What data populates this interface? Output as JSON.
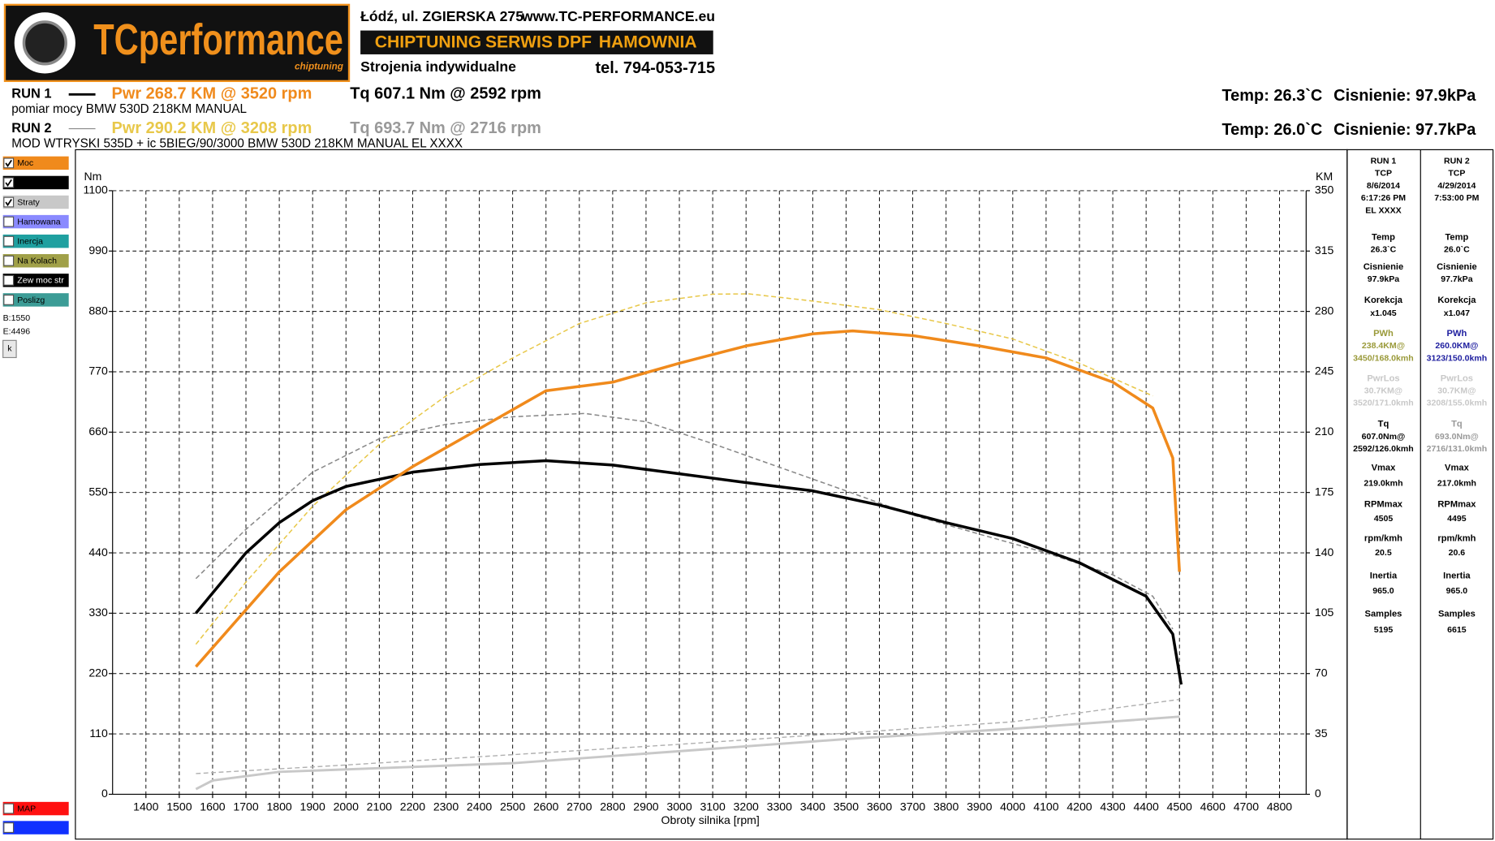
{
  "header": {
    "logo": "TCperformance",
    "logo_sub": "chiptuning",
    "address": "Łódź, ul. ZGIERSKA 275",
    "website": "www.TC-PERFORMANCE.eu",
    "banner": [
      "CHIPTUNING",
      "SERWIS DPF",
      "HAMOWNIA"
    ],
    "tagline": "Strojenia indywidualne",
    "phone": "tel. 794-053-715"
  },
  "runs": [
    {
      "label": "RUN 1",
      "pwr": "Pwr  268.7 KM @ 3520 rpm",
      "tq": "Tq 607.1 Nm @ 2592 rpm",
      "desc": "pomiar mocy BMW 530D 218KM MANUAL",
      "temp": "Temp: 26.3`C",
      "pressure": "Cisnienie: 97.9kPa",
      "line_color": "#000000",
      "pwr_color": "#f08a1c",
      "tq_color": "#000000"
    },
    {
      "label": "RUN 2",
      "pwr": "Pwr  290.2 KM @ 3208 rpm",
      "tq": "Tq 693.7 Nm @ 2716 rpm",
      "desc": "MOD WTRYSKI 535D + ic  5BIEG/90/3000 BMW 530D 218KM MANUAL EL XXXX",
      "temp": "Temp: 26.0`C",
      "pressure": "Cisnienie: 97.7kPa",
      "line_color": "#888888",
      "pwr_color": "#e8c84a",
      "tq_color": "#999999"
    }
  ],
  "sidebar": {
    "checks": [
      {
        "label": "Moc",
        "checked": true,
        "color": "#f08a1c",
        "text_color": "#000000"
      },
      {
        "checked": true,
        "color": "#000000",
        "text_color": "#ffffff"
      },
      {
        "label": "Straty",
        "checked": true,
        "color": "#c8c8c8",
        "text_color": "#000000"
      },
      {
        "label": "Hamowana",
        "checked": false,
        "color": "#8a8aff",
        "text_color": "#000000"
      },
      {
        "label": "Inercja",
        "checked": false,
        "color": "#1fa0a0",
        "text_color": "#000000"
      },
      {
        "label": "Na Kolach",
        "checked": false,
        "color": "#a0a048",
        "text_color": "#000000"
      },
      {
        "label": "Zew moc str",
        "checked": false,
        "color": "#000000",
        "text_color": "#ffffff"
      },
      {
        "label": "Poslizg",
        "checked": false,
        "color": "#3c9c96",
        "text_color": "#000000"
      }
    ],
    "begin": "B:1550",
    "end": "E:4496",
    "button": "k",
    "bottom": [
      {
        "label": "MAP",
        "color": "#ff1010"
      },
      {
        "color": "#1030ff"
      }
    ]
  },
  "info_panel": [
    {
      "header": [
        "RUN 1",
        "TCP",
        "8/6/2014",
        "6:17:26 PM",
        "EL XXXX"
      ],
      "items": [
        {
          "label": "Temp",
          "lines": [
            "26.3`C"
          ],
          "color": "#000000"
        },
        {
          "label": "Cisnienie",
          "lines": [
            "97.9kPa"
          ],
          "color": "#000000"
        },
        {
          "label": "Korekcja",
          "lines": [
            "x1.045"
          ],
          "color": "#000000"
        },
        {
          "label": "PWh",
          "lines": [
            "238.4KM@",
            "3450/168.0kmh"
          ],
          "color": "#9a9a3a"
        },
        {
          "label": "PwrLos",
          "lines": [
            "30.7KM@",
            "3520/171.0kmh"
          ],
          "color": "#c8c8c8"
        },
        {
          "label": "Tq",
          "lines": [
            "607.0Nm@",
            "2592/126.0kmh"
          ],
          "color": "#000000"
        },
        {
          "label": "Vmax",
          "lines": [
            "219.0kmh"
          ],
          "color": "#000000"
        },
        {
          "label": "RPMmax",
          "lines": [
            "4505"
          ],
          "color": "#000000"
        },
        {
          "label": "rpm/kmh",
          "lines": [
            "20.5"
          ],
          "color": "#000000"
        },
        {
          "label": "Inertia",
          "lines": [
            "965.0"
          ],
          "color": "#000000"
        },
        {
          "label": "Samples",
          "lines": [
            "5195"
          ],
          "color": "#000000"
        }
      ]
    },
    {
      "header": [
        "RUN 2",
        "TCP",
        "4/29/2014",
        "7:53:00 PM"
      ],
      "items": [
        {
          "label": "Temp",
          "lines": [
            "26.0`C"
          ],
          "color": "#000000"
        },
        {
          "label": "Cisnienie",
          "lines": [
            "97.7kPa"
          ],
          "color": "#000000"
        },
        {
          "label": "Korekcja",
          "lines": [
            "x1.047"
          ],
          "color": "#000000"
        },
        {
          "label": "PWh",
          "lines": [
            "260.0KM@",
            "3123/150.0kmh"
          ],
          "color": "#2020a0"
        },
        {
          "label": "PwrLos",
          "lines": [
            "30.7KM@",
            "3208/155.0kmh"
          ],
          "color": "#c8c8c8"
        },
        {
          "label": "Tq",
          "lines": [
            "693.0Nm@",
            "2716/131.0kmh"
          ],
          "color": "#999999"
        },
        {
          "label": "Vmax",
          "lines": [
            "217.0kmh"
          ],
          "color": "#000000"
        },
        {
          "label": "RPMmax",
          "lines": [
            "4495"
          ],
          "color": "#000000"
        },
        {
          "label": "rpm/kmh",
          "lines": [
            "20.6"
          ],
          "color": "#000000"
        },
        {
          "label": "Inertia",
          "lines": [
            "965.0"
          ],
          "color": "#000000"
        },
        {
          "label": "Samples",
          "lines": [
            "6615"
          ],
          "color": "#000000"
        }
      ]
    }
  ],
  "chart_data": {
    "type": "line",
    "x_label": "Obroty silnika [rpm]",
    "y_label": "Nm",
    "y2_label": "KM",
    "grid": true,
    "xlim": [
      1300,
      4880
    ],
    "xticks": [
      1400,
      1500,
      1600,
      1700,
      1800,
      1900,
      2000,
      2100,
      2200,
      2300,
      2400,
      2500,
      2600,
      2700,
      2800,
      2900,
      3000,
      3100,
      3200,
      3300,
      3400,
      3500,
      3600,
      3700,
      3800,
      3900,
      4000,
      4100,
      4200,
      4300,
      4400,
      4500,
      4600,
      4700,
      4800
    ],
    "ylim": [
      0,
      1100
    ],
    "yticks": [
      0,
      110,
      220,
      330,
      440,
      550,
      660,
      770,
      880,
      990,
      1100
    ],
    "y2lim": [
      0,
      350
    ],
    "y2ticks": [
      0,
      35,
      70,
      105,
      140,
      175,
      210,
      245,
      280,
      315,
      350
    ],
    "series": [
      {
        "color": "#c8c8c8",
        "width": 2.5,
        "dash": false,
        "axis": "y2",
        "x": [
          1550,
          1600,
          1800,
          2500,
          3000,
          3500,
          4000,
          4500
        ],
        "values": [
          3,
          8,
          13,
          18,
          25,
          32,
          38,
          45
        ]
      },
      {
        "color": "#b0b0b0",
        "width": 1.2,
        "dash": true,
        "axis": "y2",
        "x": [
          1550,
          2000,
          3000,
          4000,
          4500
        ],
        "values": [
          12,
          17,
          29,
          42,
          55
        ]
      },
      {
        "color": "#888888",
        "width": 1.3,
        "dash": true,
        "axis": "y",
        "x": [
          1550,
          1700,
          1900,
          2100,
          2300,
          2500,
          2716,
          2900,
          3100,
          3300,
          3500,
          3700,
          3900,
          4100,
          4300,
          4420,
          4480
        ],
        "values": [
          393,
          483,
          587,
          648,
          674,
          688,
          694,
          679,
          639,
          596,
          553,
          509,
          474,
          440,
          400,
          361,
          301
        ]
      },
      {
        "color": "#e8c84a",
        "width": 1.3,
        "dash": true,
        "axis": "y2",
        "x": [
          1550,
          1700,
          1900,
          2100,
          2300,
          2500,
          2700,
          2900,
          3100,
          3208,
          3400,
          3600,
          3800,
          4000,
          4200,
          4420
        ],
        "values": [
          87,
          123,
          167,
          203,
          231,
          253,
          273,
          285,
          290,
          290.2,
          286,
          281,
          273,
          264,
          250,
          231
        ]
      },
      {
        "color": "#000000",
        "width": 3,
        "dash": false,
        "axis": "y",
        "x": [
          1550,
          1700,
          1800,
          1900,
          2000,
          2200,
          2400,
          2600,
          2800,
          3000,
          3200,
          3400,
          3600,
          3800,
          4000,
          4200,
          4400,
          4480,
          4505
        ],
        "values": [
          330,
          440,
          495,
          535,
          561,
          587,
          601,
          608,
          600,
          584,
          568,
          553,
          527,
          495,
          466,
          422,
          361,
          292,
          200
        ]
      },
      {
        "color": "#f08a1c",
        "width": 3,
        "dash": false,
        "axis": "y2",
        "x": [
          1550,
          1700,
          1800,
          2000,
          2200,
          2400,
          2600,
          2800,
          3000,
          3200,
          3400,
          3520,
          3700,
          3900,
          4100,
          4300,
          4420,
          4480,
          4500
        ],
        "values": [
          74,
          107,
          129,
          165,
          190,
          212,
          234,
          239,
          250,
          260,
          267,
          268.7,
          266,
          260,
          253,
          239,
          224,
          195,
          129
        ]
      }
    ]
  }
}
